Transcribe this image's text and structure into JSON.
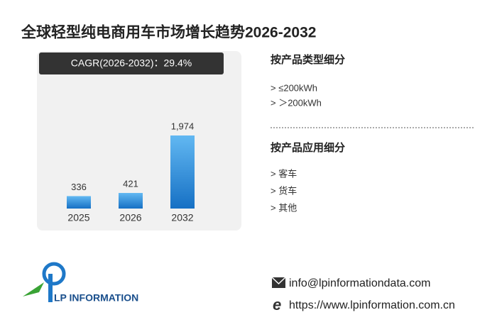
{
  "chart_data": {
    "type": "bar",
    "title": "全球轻型纯电商用车市场增长趋势2026-2032",
    "annotation": "CAGR(2026-2032)：29.4%",
    "categories": [
      "2025",
      "2026",
      "2032"
    ],
    "values": [
      336,
      421,
      1974
    ],
    "value_labels": [
      "336",
      "421",
      "1,974"
    ],
    "color": "#2a8fe0"
  },
  "segments": [
    {
      "title": "按产品类型细分",
      "items": [
        "> ≤200kWh",
        "> ＞200kWh"
      ]
    },
    {
      "title": "按产品应用细分",
      "items": [
        "> 客车",
        "> 货车",
        "> 其他"
      ]
    }
  ],
  "logo": "LP INFORMATION",
  "contact": {
    "email": "info@lpinformationdata.com",
    "website": "https://www.lpinformation.com.cn"
  }
}
